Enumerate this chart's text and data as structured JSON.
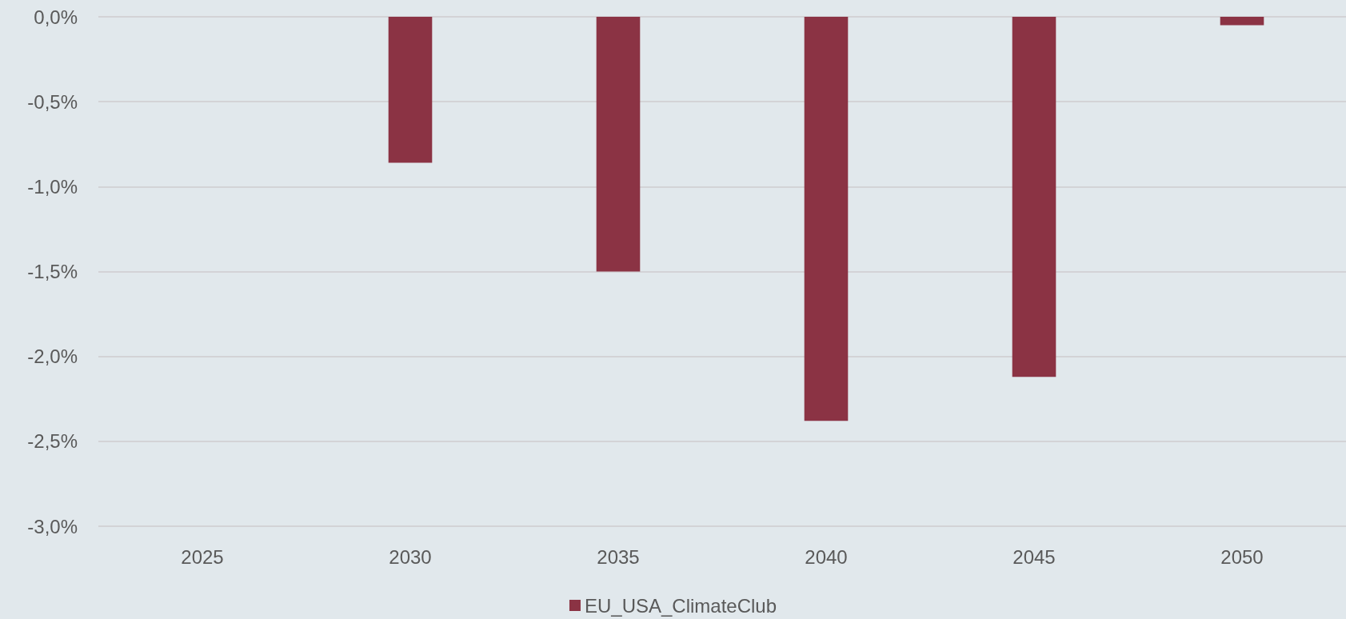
{
  "chart_data": {
    "type": "bar",
    "categories": [
      "2025",
      "2030",
      "2035",
      "2040",
      "2045",
      "2050"
    ],
    "series": [
      {
        "name": "EU_USA_ClimateClub",
        "color": "#8b3344",
        "values": [
          0,
          -0.86,
          -1.5,
          -2.38,
          -2.12,
          -0.05
        ]
      }
    ],
    "ylim": [
      -3,
      0
    ],
    "yticks": [
      {
        "value": -3,
        "label": "-3,0%"
      },
      {
        "value": -2.5,
        "label": "-2,5%"
      },
      {
        "value": -2,
        "label": "-2,0%"
      },
      {
        "value": -1.5,
        "label": "-1,5%"
      },
      {
        "value": -1,
        "label": "-1,0%"
      },
      {
        "value": -0.5,
        "label": "-0,5%"
      },
      {
        "value": 0,
        "label": "0,0%"
      }
    ],
    "grid": "y",
    "legend": "bottom"
  }
}
